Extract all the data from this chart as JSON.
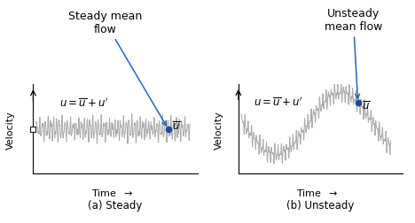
{
  "wave_color": "#aaaaaa",
  "mean_color": "#999999",
  "dot_color": "#1a4a99",
  "arrow_color": "#2266bb",
  "title_a": "(a) Steady",
  "title_b": "(b) Unsteady",
  "label_steady": "Steady mean\nflow",
  "label_unsteady": "Unsteady\nmean flow",
  "ylabel": "Velocity",
  "xlabel": "Time",
  "eq_text": "$u = \\overline{u} + u'$",
  "ubar_text": "$\\overline{u}$",
  "font_size_eq": 8.5,
  "font_size_title": 8.5,
  "font_size_axis": 8,
  "font_size_annot": 9
}
